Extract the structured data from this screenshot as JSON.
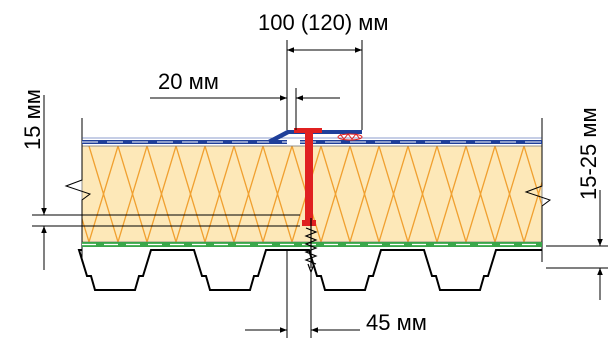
{
  "labels": {
    "overlap_width": "100 (120) мм",
    "edge_offset": "20 мм",
    "top_layer_thickness": "15 мм",
    "penetration_depth": "15-25 мм",
    "fastener_spacing": "45 мм"
  },
  "colors": {
    "insulation_fill": "#fde8b8",
    "insulation_zigzag": "#f0a030",
    "membrane": "#1f3f9a",
    "membrane_stripe": "#ffffff",
    "vapor_barrier": "#3aa64a",
    "fastener": "#e02020",
    "weld_marks": "#e02020",
    "deck": "#000000"
  },
  "icons": {
    "fastener": "telescopic-fastener-icon",
    "screw": "self-tapping-screw-icon",
    "break_line": "break-line-icon"
  }
}
